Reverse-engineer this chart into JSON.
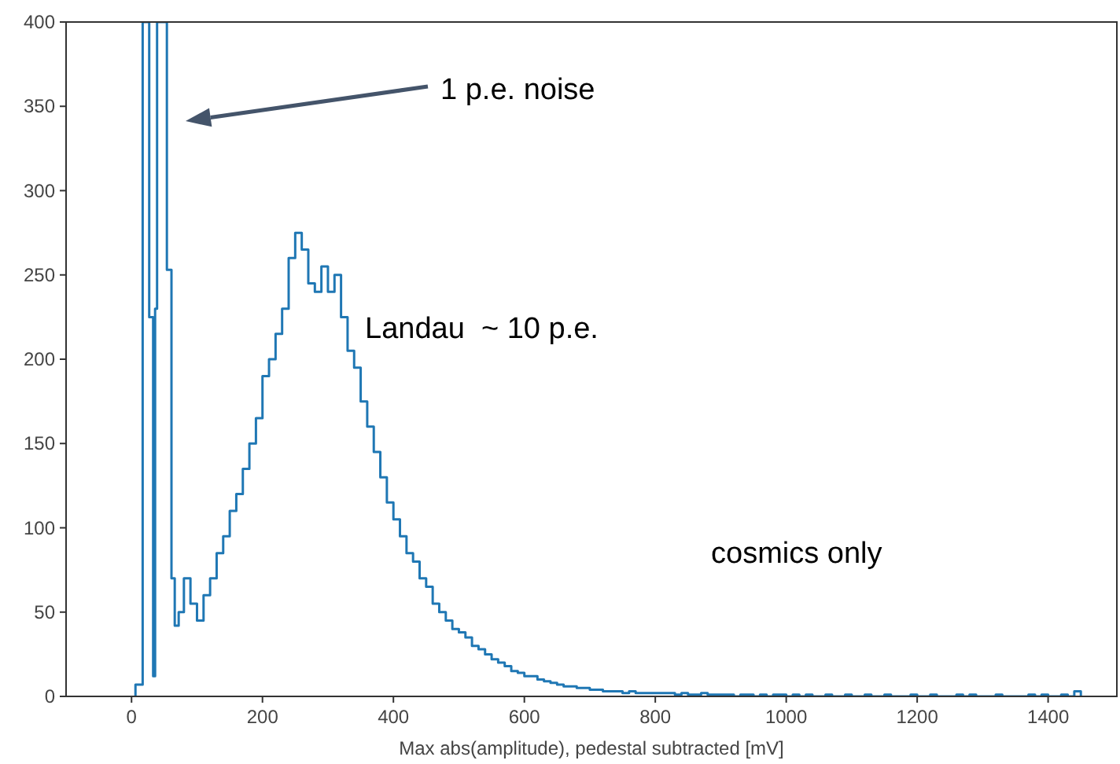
{
  "chart_data": {
    "type": "histogram",
    "xlabel": "Max abs(amplitude), pedestal subtracted [mV]",
    "bins": [
      6,
      17,
      27,
      33,
      36,
      39,
      54,
      61,
      66,
      72,
      80,
      90,
      100,
      110,
      120,
      130,
      140,
      150,
      160,
      170,
      180,
      190,
      200,
      210,
      220,
      230,
      240,
      250,
      260,
      270,
      280,
      290,
      300,
      310,
      320,
      330,
      340,
      350,
      360,
      370,
      380,
      390,
      400,
      410,
      420,
      430,
      440,
      450,
      460,
      470,
      480,
      490,
      500,
      510,
      520,
      530,
      540,
      550,
      560,
      570,
      580,
      590,
      600,
      610,
      620,
      630,
      640,
      650,
      660,
      670,
      680,
      690,
      700,
      710,
      720,
      730,
      740,
      750,
      760,
      770,
      780,
      790,
      800,
      810,
      820,
      830,
      840,
      850,
      860,
      870,
      880,
      890,
      900,
      910,
      920,
      930,
      940,
      950,
      960,
      970,
      980,
      990,
      1000,
      1010,
      1020,
      1030,
      1040,
      1050,
      1060,
      1070,
      1080,
      1090,
      1100,
      1110,
      1120,
      1130,
      1140,
      1150,
      1160,
      1170,
      1180,
      1190,
      1200,
      1210,
      1220,
      1230,
      1240,
      1250,
      1260,
      1270,
      1280,
      1290,
      1300,
      1310,
      1320,
      1330,
      1340,
      1350,
      1360,
      1370,
      1380,
      1390,
      1400,
      1410,
      1420,
      1430,
      1440,
      1450
    ],
    "values": [
      7,
      400,
      225,
      12,
      230,
      400,
      253,
      70,
      42,
      50,
      70,
      55,
      45,
      60,
      70,
      85,
      95,
      110,
      120,
      135,
      150,
      165,
      190,
      200,
      215,
      230,
      260,
      275,
      265,
      245,
      240,
      255,
      240,
      250,
      225,
      205,
      195,
      175,
      160,
      145,
      130,
      115,
      105,
      95,
      85,
      80,
      70,
      65,
      55,
      50,
      45,
      40,
      38,
      35,
      30,
      28,
      25,
      22,
      20,
      18,
      15,
      14,
      12,
      12,
      10,
      9,
      8,
      7,
      6,
      6,
      5,
      5,
      4,
      4,
      3,
      3,
      3,
      2,
      3,
      2,
      2,
      2,
      2,
      2,
      2,
      1,
      2,
      1,
      1,
      2,
      1,
      1,
      1,
      1,
      0,
      1,
      1,
      0,
      1,
      0,
      1,
      1,
      0,
      1,
      0,
      1,
      0,
      0,
      1,
      0,
      0,
      1,
      0,
      0,
      1,
      0,
      0,
      1,
      0,
      0,
      0,
      1,
      0,
      0,
      1,
      0,
      0,
      0,
      1,
      0,
      1,
      0,
      0,
      0,
      1,
      0,
      0,
      0,
      0,
      1,
      0,
      1,
      0,
      0,
      1,
      0,
      3
    ],
    "color": "#1f77b4",
    "xlim": [
      -100,
      1505
    ],
    "ylim": [
      0,
      400
    ],
    "xticks": [
      0,
      200,
      400,
      600,
      800,
      1000,
      1200,
      1400
    ],
    "yticks": [
      0,
      50,
      100,
      150,
      200,
      250,
      300,
      350,
      400
    ],
    "annotations": [
      "1 p.e. noise",
      "Landau  ~ 10 p.e.",
      "cosmics only"
    ]
  }
}
